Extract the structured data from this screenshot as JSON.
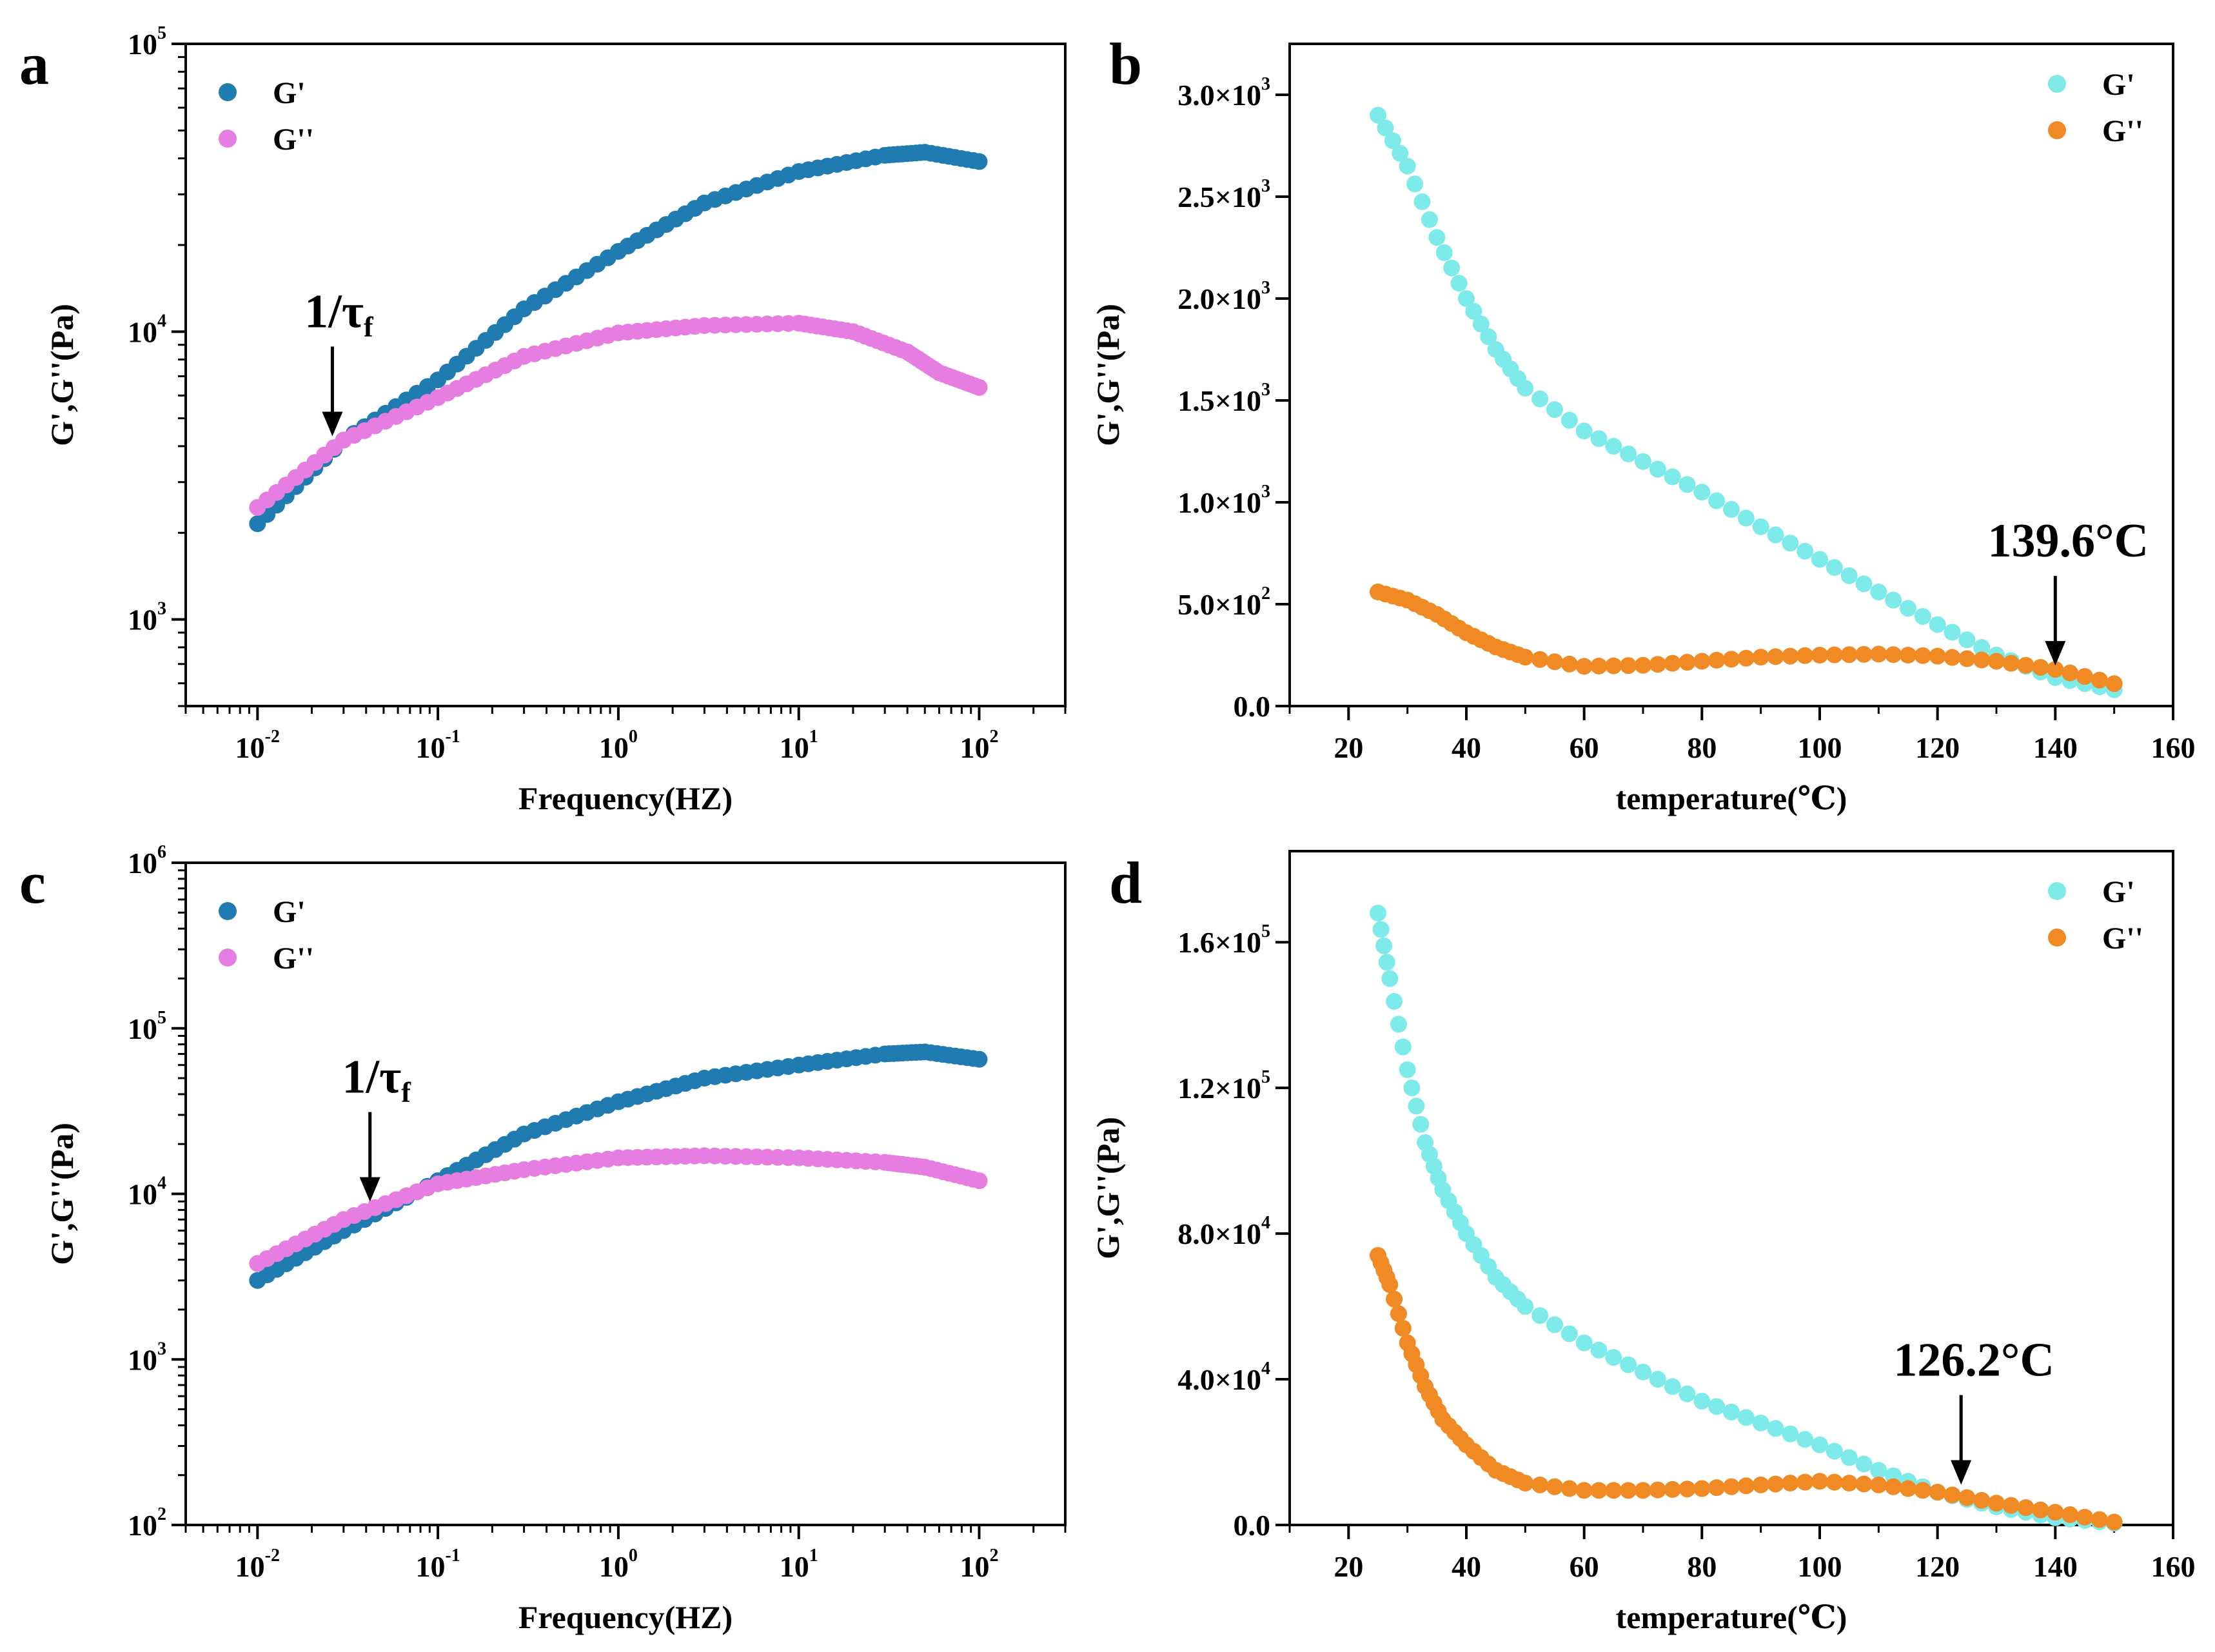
{
  "chart_data": [
    {
      "panel": "a",
      "type": "scatter",
      "xscale": "log",
      "yscale": "log",
      "xlim": [
        0.004,
        300
      ],
      "ylim": [
        500,
        100000
      ],
      "xticks": [
        {
          "base": "10",
          "exp": "-2",
          "value": 0.01
        },
        {
          "base": "10",
          "exp": "-1",
          "value": 0.1
        },
        {
          "base": "10",
          "exp": "0",
          "value": 1
        },
        {
          "base": "10",
          "exp": "1",
          "value": 10
        },
        {
          "base": "10",
          "exp": "2",
          "value": 100
        }
      ],
      "yticks": [
        {
          "base": "10",
          "exp": "3",
          "value": 1000
        },
        {
          "base": "10",
          "exp": "4",
          "value": 10000
        },
        {
          "base": "10",
          "exp": "5",
          "value": 100000
        }
      ],
      "xlabel": "Frequency(HZ)",
      "ylabel": "G',G''(Pa)",
      "legend_position": "top-left",
      "annotation": {
        "text_main": "1/τ",
        "text_sub": "f",
        "x": 0.026,
        "y": 4200
      },
      "series": [
        {
          "name": "G'",
          "color": "#1f7bb0",
          "points": [
            [
              0.01,
              2150
            ],
            [
              0.03,
              4200
            ],
            [
              0.1,
              6800
            ],
            [
              0.3,
              12000
            ],
            [
              1,
              19000
            ],
            [
              3,
              28000
            ],
            [
              10,
              36000
            ],
            [
              30,
              41000
            ],
            [
              50,
              42000
            ],
            [
              100,
              39000
            ]
          ]
        },
        {
          "name": "G''",
          "color": "#e57ee0",
          "points": [
            [
              0.01,
              2450
            ],
            [
              0.03,
              4200
            ],
            [
              0.1,
              5900
            ],
            [
              0.3,
              8200
            ],
            [
              1,
              9900
            ],
            [
              3,
              10500
            ],
            [
              10,
              10700
            ],
            [
              20,
              10000
            ],
            [
              40,
              8500
            ],
            [
              60,
              7200
            ],
            [
              100,
              6400
            ]
          ]
        }
      ]
    },
    {
      "panel": "b",
      "type": "scatter",
      "xscale": "linear",
      "yscale": "linear",
      "xlim": [
        10,
        160
      ],
      "ylim": [
        0,
        3250
      ],
      "xticks": [
        {
          "label": "20",
          "value": 20
        },
        {
          "label": "40",
          "value": 40
        },
        {
          "label": "60",
          "value": 60
        },
        {
          "label": "80",
          "value": 80
        },
        {
          "label": "100",
          "value": 100
        },
        {
          "label": "120",
          "value": 120
        },
        {
          "label": "140",
          "value": 140
        },
        {
          "label": "160",
          "value": 160
        }
      ],
      "yticks": [
        {
          "mant": "0.0",
          "exp": "",
          "value": 0
        },
        {
          "mant": "5.0×10",
          "exp": "2",
          "value": 500
        },
        {
          "mant": "1.0×10",
          "exp": "3",
          "value": 1000
        },
        {
          "mant": "1.5×10",
          "exp": "3",
          "value": 1500
        },
        {
          "mant": "2.0×10",
          "exp": "3",
          "value": 2000
        },
        {
          "mant": "2.5×10",
          "exp": "3",
          "value": 2500
        },
        {
          "mant": "3.0×10",
          "exp": "3",
          "value": 3000
        }
      ],
      "xlabel": "temperature(℃)",
      "ylabel": "G',G''(Pa)",
      "legend_position": "top-right",
      "annotation": {
        "text_main": "139.6°C",
        "text_sub": "",
        "x": 140,
        "y": 180
      },
      "series": [
        {
          "name": "G'",
          "color": "#7eeaea",
          "points": [
            [
              25,
              2900
            ],
            [
              30,
              2650
            ],
            [
              35,
              2300
            ],
            [
              40,
              2000
            ],
            [
              45,
              1750
            ],
            [
              50,
              1560
            ],
            [
              60,
              1350
            ],
            [
              70,
              1200
            ],
            [
              80,
              1050
            ],
            [
              90,
              880
            ],
            [
              100,
              720
            ],
            [
              110,
              560
            ],
            [
              120,
              400
            ],
            [
              130,
              250
            ],
            [
              140,
              140
            ],
            [
              150,
              80
            ]
          ]
        },
        {
          "name": "G''",
          "color": "#f08a24",
          "points": [
            [
              25,
              560
            ],
            [
              30,
              520
            ],
            [
              35,
              450
            ],
            [
              40,
              360
            ],
            [
              45,
              290
            ],
            [
              50,
              240
            ],
            [
              60,
              195
            ],
            [
              70,
              200
            ],
            [
              80,
              220
            ],
            [
              90,
              240
            ],
            [
              100,
              250
            ],
            [
              110,
              255
            ],
            [
              120,
              245
            ],
            [
              130,
              220
            ],
            [
              140,
              180
            ],
            [
              150,
              110
            ]
          ]
        }
      ]
    },
    {
      "panel": "c",
      "type": "scatter",
      "xscale": "log",
      "yscale": "log",
      "xlim": [
        0.004,
        300
      ],
      "ylim": [
        100,
        1000000
      ],
      "xticks": [
        {
          "base": "10",
          "exp": "-2",
          "value": 0.01
        },
        {
          "base": "10",
          "exp": "-1",
          "value": 0.1
        },
        {
          "base": "10",
          "exp": "0",
          "value": 1
        },
        {
          "base": "10",
          "exp": "1",
          "value": 10
        },
        {
          "base": "10",
          "exp": "2",
          "value": 100
        }
      ],
      "yticks": [
        {
          "base": "10",
          "exp": "2",
          "value": 100
        },
        {
          "base": "10",
          "exp": "3",
          "value": 1000
        },
        {
          "base": "10",
          "exp": "4",
          "value": 10000
        },
        {
          "base": "10",
          "exp": "5",
          "value": 100000
        },
        {
          "base": "10",
          "exp": "6",
          "value": 1000000
        }
      ],
      "xlabel": "Frequency(HZ)",
      "ylabel": "G',G''(Pa)",
      "legend_position": "top-left",
      "annotation": {
        "text_main": "1/τ",
        "text_sub": "f",
        "x": 0.042,
        "y": 8500
      },
      "series": [
        {
          "name": "G'",
          "color": "#1f7bb0",
          "points": [
            [
              0.01,
              3000
            ],
            [
              0.03,
              6000
            ],
            [
              0.1,
              12000
            ],
            [
              0.3,
              23000
            ],
            [
              1,
              36000
            ],
            [
              3,
              50000
            ],
            [
              10,
              60000
            ],
            [
              30,
              70000
            ],
            [
              50,
              72000
            ],
            [
              100,
              65000
            ]
          ]
        },
        {
          "name": "G''",
          "color": "#e57ee0",
          "points": [
            [
              0.01,
              3800
            ],
            [
              0.03,
              7000
            ],
            [
              0.1,
              11500
            ],
            [
              0.3,
              14000
            ],
            [
              1,
              16500
            ],
            [
              3,
              17000
            ],
            [
              10,
              16500
            ],
            [
              30,
              15500
            ],
            [
              50,
              14500
            ],
            [
              100,
              12000
            ]
          ]
        }
      ]
    },
    {
      "panel": "d",
      "type": "scatter",
      "xscale": "linear",
      "yscale": "linear",
      "xlim": [
        10,
        160
      ],
      "ylim": [
        0,
        185000
      ],
      "xticks": [
        {
          "label": "20",
          "value": 20
        },
        {
          "label": "40",
          "value": 40
        },
        {
          "label": "60",
          "value": 60
        },
        {
          "label": "80",
          "value": 80
        },
        {
          "label": "100",
          "value": 100
        },
        {
          "label": "120",
          "value": 120
        },
        {
          "label": "140",
          "value": 140
        },
        {
          "label": "160",
          "value": 160
        }
      ],
      "yticks": [
        {
          "mant": "0.0",
          "exp": "",
          "value": 0
        },
        {
          "mant": "4.0×10",
          "exp": "4",
          "value": 40000
        },
        {
          "mant": "8.0×10",
          "exp": "4",
          "value": 80000
        },
        {
          "mant": "1.2×10",
          "exp": "5",
          "value": 120000
        },
        {
          "mant": "1.6×10",
          "exp": "5",
          "value": 160000
        }
      ],
      "xlabel": "temperature(℃)",
      "ylabel": "G',G''(Pa)",
      "legend_position": "top-right",
      "annotation": {
        "text_main": "126.2°C",
        "text_sub": "",
        "x": 124,
        "y": 10000
      },
      "series": [
        {
          "name": "G'",
          "color": "#7eeaea",
          "points": [
            [
              25,
              168000
            ],
            [
              27,
              150000
            ],
            [
              30,
              125000
            ],
            [
              33,
              105000
            ],
            [
              36,
              92000
            ],
            [
              40,
              80000
            ],
            [
              45,
              68000
            ],
            [
              50,
              60000
            ],
            [
              60,
              50000
            ],
            [
              70,
              42000
            ],
            [
              80,
              34000
            ],
            [
              90,
              28000
            ],
            [
              100,
              22000
            ],
            [
              110,
              15000
            ],
            [
              120,
              9000
            ],
            [
              130,
              5000
            ],
            [
              140,
              2000
            ],
            [
              150,
              500
            ]
          ]
        },
        {
          "name": "G''",
          "color": "#f08a24",
          "points": [
            [
              25,
              74000
            ],
            [
              27,
              66000
            ],
            [
              30,
              50000
            ],
            [
              33,
              38000
            ],
            [
              36,
              29000
            ],
            [
              40,
              22000
            ],
            [
              45,
              15000
            ],
            [
              50,
              11500
            ],
            [
              60,
              9500
            ],
            [
              70,
              9500
            ],
            [
              80,
              10000
            ],
            [
              90,
              11000
            ],
            [
              100,
              12000
            ],
            [
              110,
              11000
            ],
            [
              120,
              9000
            ],
            [
              130,
              6000
            ],
            [
              140,
              3500
            ],
            [
              150,
              800
            ]
          ]
        }
      ]
    }
  ]
}
